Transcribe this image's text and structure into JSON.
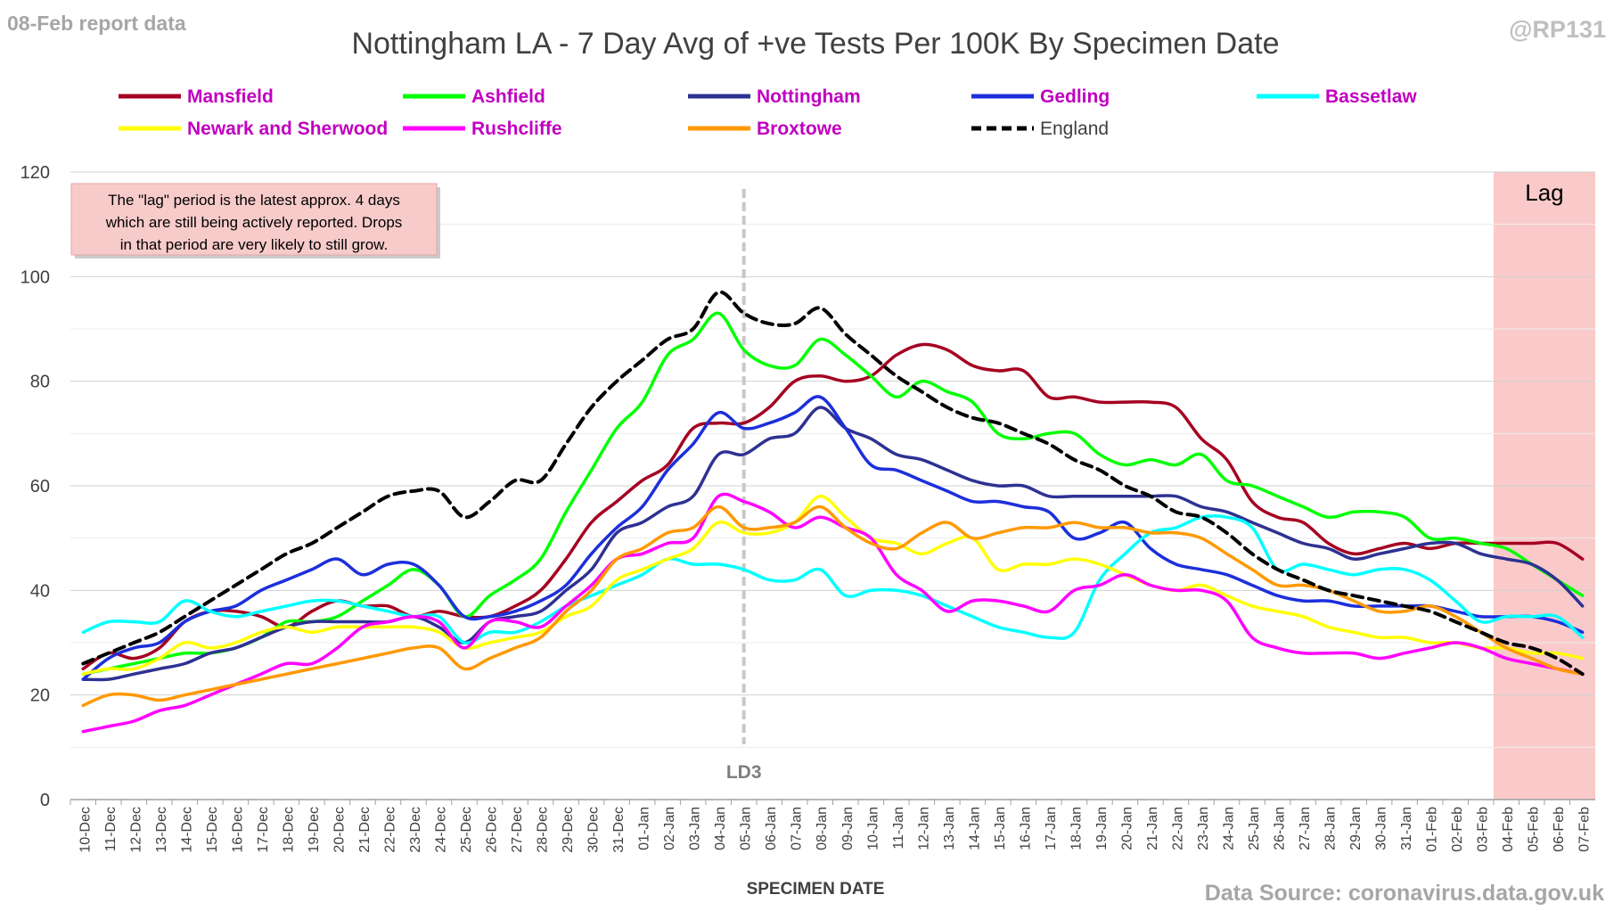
{
  "header": {
    "report_label": "08-Feb report data",
    "handle": "@RP131",
    "source": "Data Source: coronavirus.data.gov.uk"
  },
  "note": {
    "lines": [
      "The \"lag\" period is the latest approx. 4 days",
      "which are still being actively reported.  Drops",
      "in that period are very likely to still grow."
    ]
  },
  "chart_data": {
    "type": "line",
    "title": "Nottingham LA - 7 Day Avg of +ve Tests Per 100K By Specimen Date",
    "xlabel": "SPECIMEN DATE",
    "ylabel": "",
    "ylim": [
      0,
      120
    ],
    "yticks": [
      0,
      20,
      40,
      60,
      80,
      100,
      120
    ],
    "grid": true,
    "legend_position": "top",
    "categories": [
      "10-Dec",
      "11-Dec",
      "12-Dec",
      "13-Dec",
      "14-Dec",
      "15-Dec",
      "16-Dec",
      "17-Dec",
      "18-Dec",
      "19-Dec",
      "20-Dec",
      "21-Dec",
      "22-Dec",
      "23-Dec",
      "24-Dec",
      "25-Dec",
      "26-Dec",
      "27-Dec",
      "28-Dec",
      "29-Dec",
      "30-Dec",
      "31-Dec",
      "01-Jan",
      "02-Jan",
      "03-Jan",
      "04-Jan",
      "05-Jan",
      "06-Jan",
      "07-Jan",
      "08-Jan",
      "09-Jan",
      "10-Jan",
      "11-Jan",
      "12-Jan",
      "13-Jan",
      "14-Jan",
      "15-Jan",
      "16-Jan",
      "17-Jan",
      "18-Jan",
      "19-Jan",
      "20-Jan",
      "21-Jan",
      "22-Jan",
      "23-Jan",
      "24-Jan",
      "25-Jan",
      "26-Jan",
      "27-Jan",
      "28-Jan",
      "29-Jan",
      "30-Jan",
      "31-Jan",
      "01-Feb",
      "02-Feb",
      "03-Feb",
      "04-Feb",
      "05-Feb",
      "06-Feb",
      "07-Feb"
    ],
    "annotations": [
      {
        "label": "LD3",
        "x": "05-Jan"
      },
      {
        "label": "Lag",
        "from": "04-Feb",
        "to": "07-Feb",
        "color": "#f9c4c4"
      }
    ],
    "series": [
      {
        "name": "Mansfield",
        "color": "#a50021",
        "dashed": false,
        "values": [
          25,
          28,
          27,
          29,
          34,
          36,
          36,
          35,
          33,
          36,
          38,
          37,
          37,
          35,
          36,
          35,
          35,
          37,
          40,
          46,
          53,
          57,
          61,
          64,
          71,
          72,
          72,
          75,
          80,
          81,
          80,
          81,
          85,
          87,
          86,
          83,
          82,
          82,
          77,
          77,
          76,
          76,
          76,
          75,
          69,
          65,
          57,
          54,
          53,
          49,
          47,
          48,
          49,
          48,
          49,
          49,
          49,
          49,
          49,
          46
        ]
      },
      {
        "name": "Ashfield",
        "color": "#00ff00",
        "dashed": false,
        "values": [
          24,
          25,
          26,
          27,
          28,
          28,
          29,
          31,
          34,
          34,
          35,
          38,
          41,
          44,
          41,
          35,
          39,
          42,
          46,
          55,
          63,
          71,
          76,
          85,
          88,
          93,
          86,
          83,
          83,
          88,
          85,
          81,
          77,
          80,
          78,
          76,
          70,
          69,
          70,
          70,
          66,
          64,
          65,
          64,
          66,
          61,
          60,
          58,
          56,
          54,
          55,
          55,
          54,
          50,
          50,
          49,
          48,
          45,
          42,
          39
        ]
      },
      {
        "name": "Nottingham",
        "color": "#2e3192",
        "dashed": false,
        "values": [
          23,
          23,
          24,
          25,
          26,
          28,
          29,
          31,
          33,
          34,
          34,
          34,
          34,
          35,
          33,
          30,
          34,
          35,
          36,
          40,
          44,
          51,
          53,
          56,
          58,
          66,
          66,
          69,
          70,
          75,
          71,
          69,
          66,
          65,
          63,
          61,
          60,
          60,
          58,
          58,
          58,
          58,
          58,
          58,
          56,
          55,
          53,
          51,
          49,
          48,
          46,
          47,
          48,
          49,
          49,
          47,
          46,
          45,
          42,
          37
        ]
      },
      {
        "name": "Gedling",
        "color": "#1c2fdb",
        "dashed": false,
        "values": [
          23,
          27,
          29,
          30,
          34,
          36,
          37,
          40,
          42,
          44,
          46,
          43,
          45,
          45,
          41,
          35,
          35,
          36,
          38,
          41,
          47,
          52,
          56,
          63,
          68,
          74,
          71,
          72,
          74,
          77,
          71,
          64,
          63,
          61,
          59,
          57,
          57,
          56,
          55,
          50,
          51,
          53,
          48,
          45,
          44,
          43,
          41,
          39,
          38,
          38,
          37,
          37,
          37,
          37,
          36,
          35,
          35,
          35,
          34,
          32
        ]
      },
      {
        "name": "Bassetlaw",
        "color": "#00ffff",
        "dashed": false,
        "values": [
          32,
          34,
          34,
          34,
          38,
          36,
          35,
          36,
          37,
          38,
          38,
          37,
          36,
          35,
          35,
          30,
          32,
          32,
          34,
          37,
          39,
          41,
          43,
          46,
          45,
          45,
          44,
          42,
          42,
          44,
          39,
          40,
          40,
          39,
          37,
          35,
          33,
          32,
          31,
          32,
          42,
          47,
          51,
          52,
          54,
          54,
          52,
          44,
          45,
          44,
          43,
          44,
          44,
          42,
          38,
          34,
          35,
          35,
          35,
          31
        ]
      },
      {
        "name": "Newark and Sherwood",
        "color": "#ffff00",
        "dashed": false,
        "values": [
          24,
          25,
          25,
          27,
          30,
          29,
          30,
          32,
          33,
          32,
          33,
          33,
          33,
          33,
          32,
          29,
          30,
          31,
          32,
          35,
          37,
          42,
          44,
          46,
          48,
          53,
          51,
          51,
          53,
          58,
          54,
          50,
          49,
          47,
          49,
          50,
          44,
          45,
          45,
          46,
          45,
          43,
          41,
          40,
          41,
          39,
          37,
          36,
          35,
          33,
          32,
          31,
          31,
          30,
          30,
          29,
          29,
          28,
          28,
          27
        ]
      },
      {
        "name": "Rushcliffe",
        "color": "#ff00ff",
        "dashed": false,
        "values": [
          13,
          14,
          15,
          17,
          18,
          20,
          22,
          24,
          26,
          26,
          29,
          33,
          34,
          35,
          34,
          29,
          34,
          34,
          33,
          37,
          41,
          46,
          47,
          49,
          50,
          58,
          57,
          55,
          52,
          54,
          52,
          50,
          43,
          40,
          36,
          38,
          38,
          37,
          36,
          40,
          41,
          43,
          41,
          40,
          40,
          38,
          31,
          29,
          28,
          28,
          28,
          27,
          28,
          29,
          30,
          29,
          27,
          26,
          25,
          24
        ]
      },
      {
        "name": "Broxtowe",
        "color": "#ff9900",
        "dashed": false,
        "values": [
          18,
          20,
          20,
          19,
          20,
          21,
          22,
          23,
          24,
          25,
          26,
          27,
          28,
          29,
          29,
          25,
          27,
          29,
          31,
          36,
          40,
          46,
          48,
          51,
          52,
          56,
          52,
          52,
          53,
          56,
          52,
          49,
          48,
          51,
          53,
          50,
          51,
          52,
          52,
          53,
          52,
          52,
          51,
          51,
          50,
          47,
          44,
          41,
          41,
          40,
          38,
          36,
          36,
          37,
          35,
          32,
          29,
          27,
          25,
          24
        ]
      },
      {
        "name": "England",
        "color": "#000000",
        "dashed": true,
        "values": [
          26,
          28,
          30,
          32,
          35,
          38,
          41,
          44,
          47,
          49,
          52,
          55,
          58,
          59,
          59,
          54,
          57,
          61,
          61,
          68,
          75,
          80,
          84,
          88,
          90,
          97,
          93,
          91,
          91,
          94,
          89,
          85,
          81,
          78,
          75,
          73,
          72,
          70,
          68,
          65,
          63,
          60,
          58,
          55,
          54,
          51,
          47,
          44,
          42,
          40,
          39,
          38,
          37,
          36,
          34,
          32,
          30,
          29,
          27,
          24
        ]
      }
    ]
  }
}
